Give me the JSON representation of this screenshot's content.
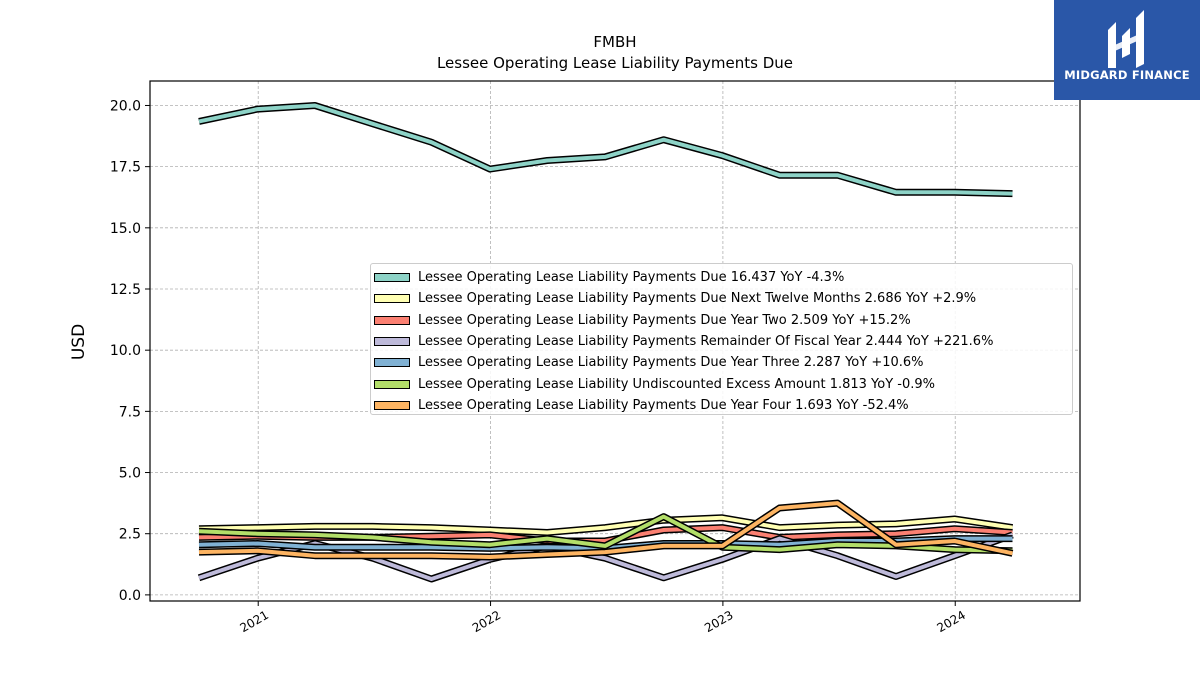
{
  "logo": {
    "brand": "MIDGARD FINANCE",
    "bg_color": "#2a57a8"
  },
  "chart_data": {
    "type": "line",
    "title": "FMBH",
    "subtitle": "Lessee Operating Lease Liability Payments Due",
    "xlabel": "",
    "ylabel": "USD",
    "grid": true,
    "legend_position": "center-right",
    "x_ticks": [
      "2021",
      "2022",
      "2023",
      "2024"
    ],
    "y_ticks": [
      "0.0",
      "2.5",
      "5.0",
      "7.5",
      "10.0",
      "12.5",
      "15.0",
      "17.5",
      "20.0"
    ],
    "ylim": [
      -0.25,
      21.0
    ],
    "xlim": [
      "2020-07-15",
      "2024-07-15"
    ],
    "x": [
      "2020-09-30",
      "2020-12-31",
      "2021-03-31",
      "2021-06-30",
      "2021-09-30",
      "2021-12-31",
      "2022-03-31",
      "2022-06-30",
      "2022-09-30",
      "2022-12-31",
      "2023-03-31",
      "2023-06-30",
      "2023-09-30",
      "2023-12-31",
      "2024-03-31"
    ],
    "series": [
      {
        "name": "Lessee Operating Lease Liability Payments Due",
        "legend": "Lessee Operating Lease Liability Payments Due  16.437 YoY -4.3%",
        "color": "#8dd3c7",
        "values": [
          19.35,
          19.85,
          20.0,
          19.25,
          18.5,
          17.4,
          17.75,
          17.9,
          18.6,
          17.95,
          17.15,
          17.15,
          16.45,
          16.45,
          16.4
        ]
      },
      {
        "name": "Lessee Operating Lease Liability Payments Due Next Twelve Months",
        "legend": "Lessee Operating Lease Liability Payments Due Next Twelve Months  2.686 YoY +2.9%",
        "color": "#ffffb3",
        "values": [
          2.7,
          2.75,
          2.8,
          2.8,
          2.75,
          2.65,
          2.55,
          2.75,
          3.05,
          3.15,
          2.75,
          2.85,
          2.9,
          3.1,
          2.75
        ]
      },
      {
        "name": "Lessee Operating Lease Liability Payments Due Year Two",
        "legend": "Lessee Operating Lease Liability Payments Due Year Two  2.509 YoY +15.2%",
        "color": "#fb8072",
        "values": [
          2.35,
          2.4,
          2.35,
          2.35,
          2.4,
          2.45,
          2.2,
          2.2,
          2.65,
          2.75,
          2.35,
          2.45,
          2.5,
          2.7,
          2.55
        ]
      },
      {
        "name": "Lessee Operating Lease Liability Payments Remainder Of Fiscal Year",
        "legend": "Lessee Operating Lease Liability Payments Remainder Of Fiscal Year  2.444 YoY +221.6%",
        "color": "#bebada",
        "values": [
          0.7,
          1.5,
          2.1,
          1.5,
          0.65,
          1.45,
          2.0,
          1.5,
          0.7,
          1.45,
          2.3,
          1.6,
          0.75,
          1.6,
          2.45
        ]
      },
      {
        "name": "Lessee Operating Lease Liability Payments Due Year Three",
        "legend": "Lessee Operating Lease Liability Payments Due Year Three  2.287 YoY +10.6%",
        "color": "#80b1d3",
        "values": [
          2.05,
          2.1,
          1.95,
          1.95,
          1.95,
          1.9,
          1.95,
          1.9,
          2.1,
          2.1,
          2.05,
          2.2,
          2.2,
          2.3,
          2.3
        ]
      },
      {
        "name": "Lessee Operating Lease Liability Undiscounted Excess Amount",
        "legend": "Lessee Operating Lease Liability Undiscounted Excess Amount  1.813 YoY -0.9%",
        "color": "#b3de69",
        "values": [
          2.6,
          2.5,
          2.45,
          2.35,
          2.15,
          2.05,
          2.3,
          2.0,
          3.2,
          1.95,
          1.85,
          2.05,
          2.0,
          1.85,
          1.8
        ]
      },
      {
        "name": "Lessee Operating Lease Liability Payments Due Year Four",
        "legend": "Lessee Operating Lease Liability Payments Due Year Four  1.693 YoY -52.4%",
        "color": "#fdb462",
        "values": [
          1.75,
          1.8,
          1.6,
          1.6,
          1.6,
          1.55,
          1.65,
          1.75,
          2.0,
          2.0,
          3.55,
          3.75,
          2.05,
          2.2,
          1.7
        ]
      }
    ]
  }
}
